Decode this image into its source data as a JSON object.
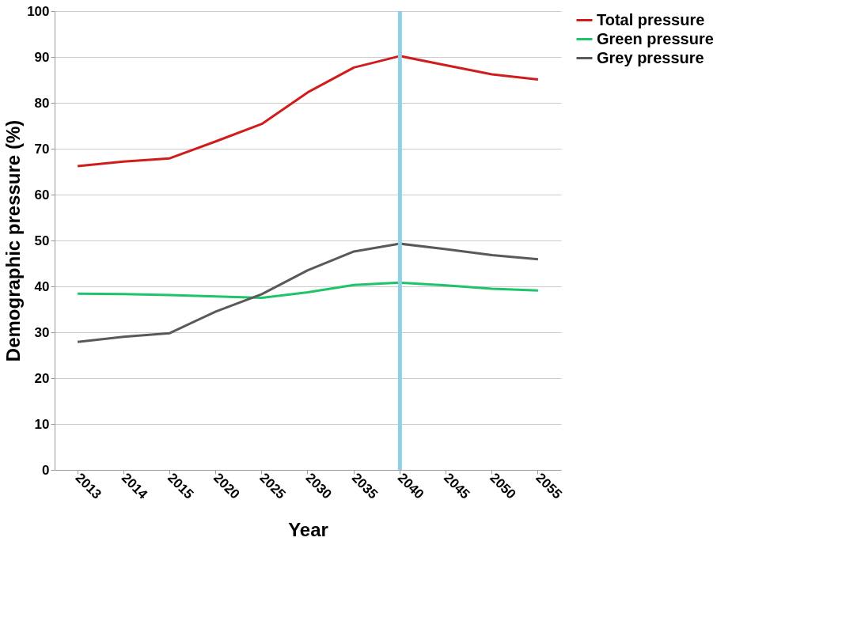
{
  "chart_data": {
    "type": "line",
    "xlabel": "Year",
    "ylabel": "Demographic pressure (%)",
    "categories": [
      "2013",
      "2014",
      "2015",
      "2020",
      "2025",
      "2030",
      "2035",
      "2040",
      "2045",
      "2050",
      "2055"
    ],
    "series": [
      {
        "name": "Total pressure",
        "color": "#d01c1c",
        "values": [
          66.2,
          67.2,
          67.9,
          71.6,
          75.4,
          82.3,
          87.7,
          90.2,
          88.2,
          86.2,
          85.1
        ]
      },
      {
        "name": "Green pressure",
        "color": "#1ec46a",
        "values": [
          38.4,
          38.3,
          38.1,
          37.8,
          37.5,
          38.7,
          40.3,
          40.8,
          40.2,
          39.5,
          39.1
        ]
      },
      {
        "name": "Grey pressure",
        "color": "#595959",
        "values": [
          27.9,
          29.0,
          29.8,
          34.5,
          38.3,
          43.5,
          47.6,
          49.3,
          48.1,
          46.8,
          45.9
        ]
      }
    ],
    "ylim": [
      0,
      100
    ],
    "yticks": [
      0,
      10,
      20,
      30,
      40,
      50,
      60,
      70,
      80,
      90,
      100
    ],
    "grid": "y",
    "legend": "right",
    "marker": "none",
    "line_style": "solid",
    "ref_lines": [
      {
        "axis": "x",
        "value": "2040",
        "color": "#8fd1e0"
      }
    ]
  }
}
